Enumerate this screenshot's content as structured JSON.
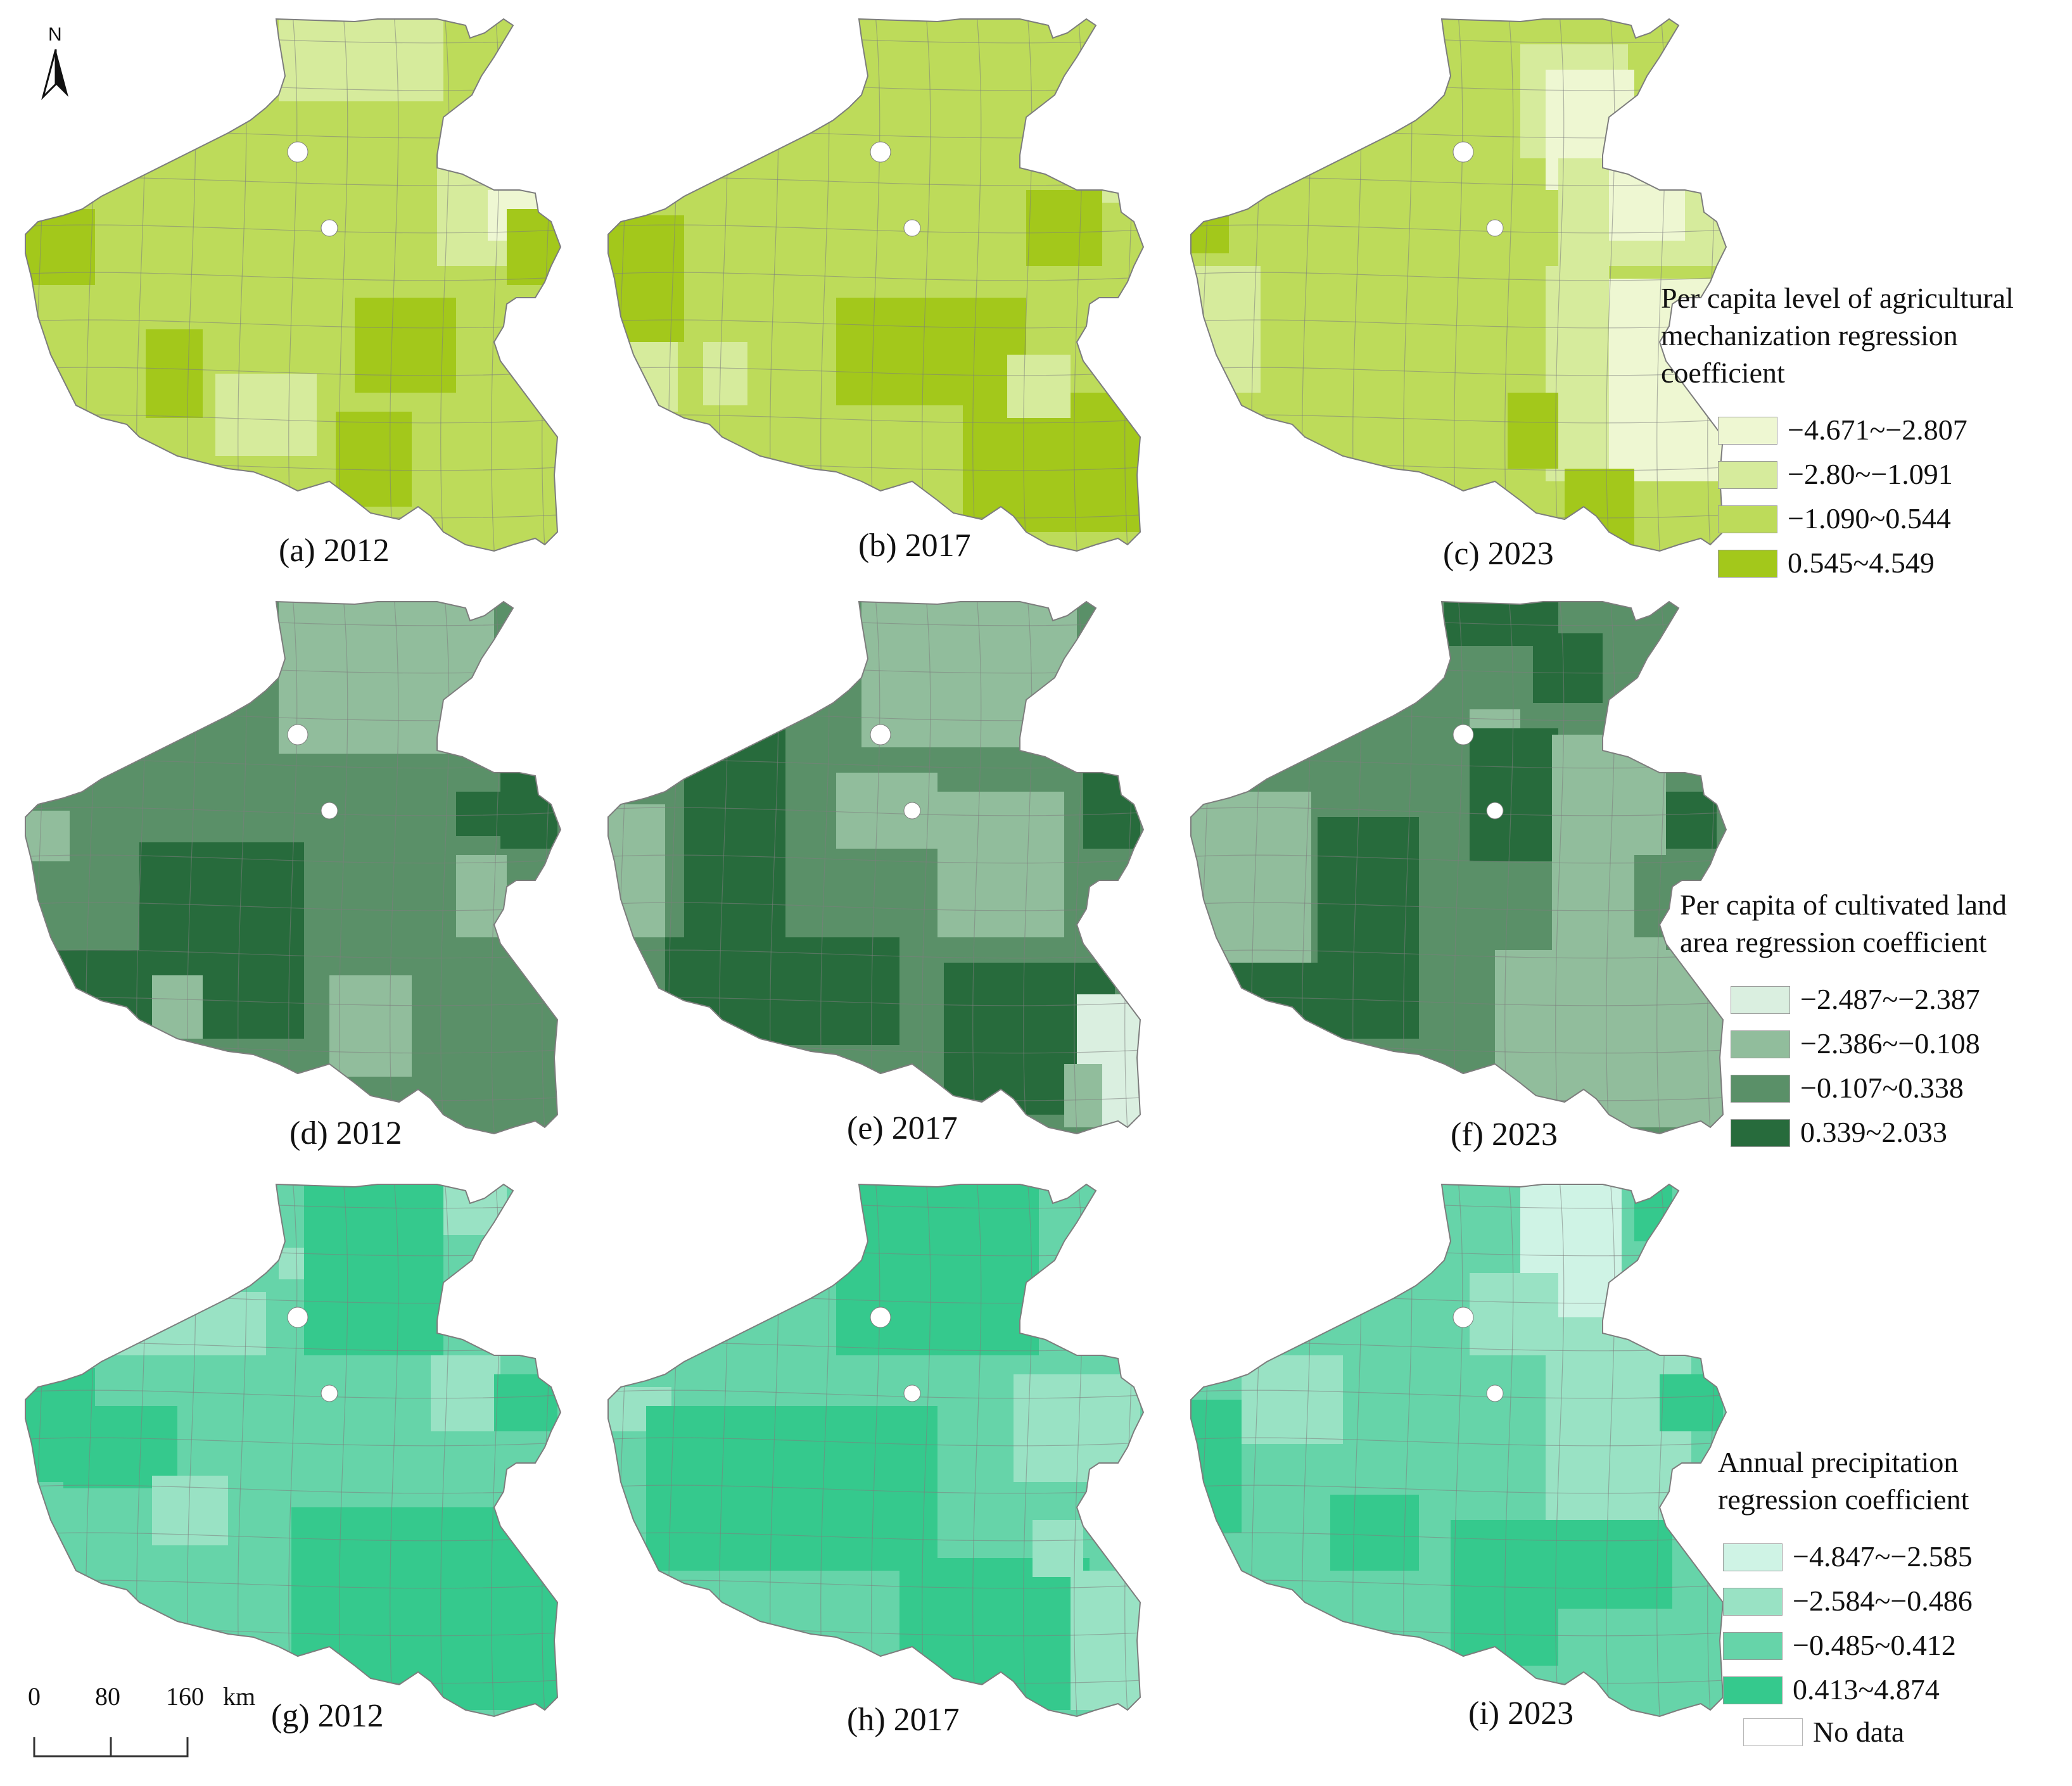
{
  "north_arrow": {
    "label": "N"
  },
  "scale_bar": {
    "ticks": [
      "0",
      "80",
      "160"
    ],
    "unit": "km"
  },
  "panels": [
    {
      "id": "a",
      "caption": "(a) 2012",
      "variable": "mech",
      "col": 0,
      "row": 0
    },
    {
      "id": "b",
      "caption": "(b) 2017",
      "variable": "mech",
      "col": 1,
      "row": 0
    },
    {
      "id": "c",
      "caption": "(c) 2023",
      "variable": "mech",
      "col": 2,
      "row": 0
    },
    {
      "id": "d",
      "caption": "(d) 2012",
      "variable": "land",
      "col": 0,
      "row": 1
    },
    {
      "id": "e",
      "caption": "(e) 2017",
      "variable": "land",
      "col": 1,
      "row": 1
    },
    {
      "id": "f",
      "caption": "(f) 2023",
      "variable": "land",
      "col": 2,
      "row": 1
    },
    {
      "id": "g",
      "caption": "(g) 2012",
      "variable": "precip",
      "col": 0,
      "row": 2
    },
    {
      "id": "h",
      "caption": "(h) 2017",
      "variable": "precip",
      "col": 1,
      "row": 2
    },
    {
      "id": "i",
      "caption": "(i) 2023",
      "variable": "precip",
      "col": 2,
      "row": 2
    }
  ],
  "legends": {
    "mech": {
      "title_lines": [
        "Per capita level of agricultural",
        "mechanization regression",
        "coefficient"
      ],
      "classes": [
        {
          "label": "−4.671~−2.807",
          "color": "#eef7d2"
        },
        {
          "label": "−2.80~−1.091",
          "color": "#d6eb9c"
        },
        {
          "label": "−1.090~0.544",
          "color": "#bddb5a"
        },
        {
          "label": "0.545~4.549",
          "color": "#a3c81b"
        }
      ]
    },
    "land": {
      "title_lines": [
        "Per capita of cultivated land",
        "area regression coefficient"
      ],
      "classes": [
        {
          "label": "−2.487~−2.387",
          "color": "#daefe0"
        },
        {
          "label": "−2.386~−0.108",
          "color": "#91bd9c"
        },
        {
          "label": "−0.107~0.338",
          "color": "#5a9068"
        },
        {
          "label": "0.339~2.033",
          "color": "#276b3c"
        }
      ]
    },
    "precip": {
      "title_lines": [
        "Annual precipitation",
        "regression coefficient"
      ],
      "classes": [
        {
          "label": "−4.847~−2.585",
          "color": "#cff3e5"
        },
        {
          "label": "−2.584~−0.486",
          "color": "#99e2c4"
        },
        {
          "label": "−0.485~0.412",
          "color": "#66d4a9"
        },
        {
          "label": "0.413~4.874",
          "color": "#35c98d"
        }
      ]
    }
  },
  "no_data": {
    "label": "No data",
    "color": "#ffffff"
  },
  "boundary_color": "#7d7d7d"
}
